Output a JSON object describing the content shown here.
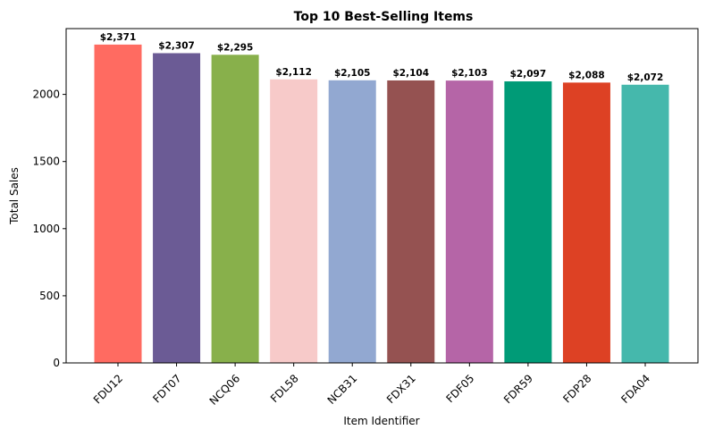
{
  "chart_data": {
    "type": "bar",
    "title": "Top 10 Best-Selling Items",
    "xlabel": "Item Identifier",
    "ylabel": "Total Sales",
    "categories": [
      "FDU12",
      "FDT07",
      "NCQ06",
      "FDL58",
      "NCB31",
      "FDX31",
      "FDF05",
      "FDR59",
      "FDP28",
      "FDA04"
    ],
    "values": [
      2371,
      2307,
      2295,
      2112,
      2105,
      2104,
      2103,
      2097,
      2088,
      2072
    ],
    "value_labels": [
      "$2,371",
      "$2,307",
      "$2,295",
      "$2,112",
      "$2,105",
      "$2,104",
      "$2,103",
      "$2,097",
      "$2,088",
      "$2,072"
    ],
    "colors": [
      "#ff6b61",
      "#6b5b95",
      "#88b04b",
      "#f7cac9",
      "#92a8d1",
      "#955251",
      "#b565a7",
      "#009b77",
      "#dd4124",
      "#45b8ac"
    ],
    "ylim": [
      0,
      2490
    ],
    "yticks": [
      0,
      500,
      1000,
      1500,
      2000
    ],
    "ytick_labels": [
      "0",
      "500",
      "1000",
      "1500",
      "2000"
    ],
    "grid": false,
    "legend": "none"
  }
}
